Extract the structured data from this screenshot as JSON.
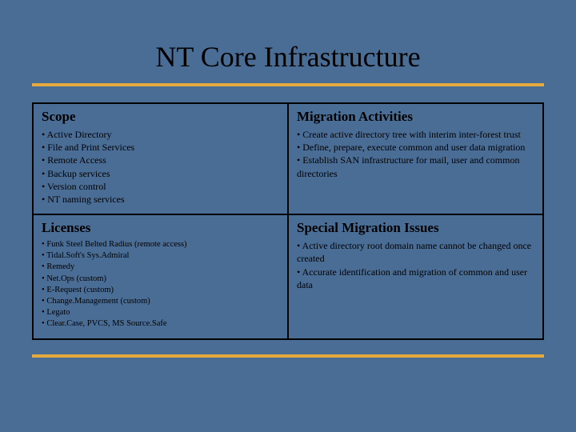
{
  "title": "NT Core Infrastructure",
  "colors": {
    "background": "#4a6d96",
    "accent": "#e5a93d",
    "text": "#000000",
    "border": "#000000"
  },
  "cells": {
    "scope": {
      "header": "Scope",
      "items": [
        "Active Directory",
        "File and Print Services",
        "Remote Access",
        "Backup services",
        "Version control",
        "NT naming services"
      ]
    },
    "migration": {
      "header": "Migration Activities",
      "items": [
        "Create active directory tree with interim inter-forest trust",
        "Define, prepare, execute common and user data migration",
        "Establish SAN infrastructure for mail, user and common directories"
      ]
    },
    "licenses": {
      "header": "Licenses",
      "items": [
        "Funk Steel Belted Radius (remote access)",
        "Tidal.Soft's Sys.Admiral",
        "Remedy",
        "Net.Ops (custom)",
        "E-Request (custom)",
        "Change.Management (custom)",
        "Legato",
        "Clear.Case, PVCS, MS Source.Safe"
      ]
    },
    "issues": {
      "header": "Special Migration Issues",
      "items": [
        "Active directory root domain name cannot be changed once created",
        "Accurate identification and migration of common and user data"
      ]
    }
  }
}
